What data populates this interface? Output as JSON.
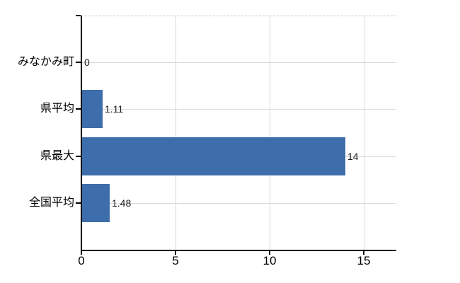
{
  "chart_data": {
    "type": "bar",
    "orientation": "horizontal",
    "title": "",
    "xlabel": "",
    "ylabel": "",
    "categories": [
      "みなかみ町",
      "県平均",
      "県最大",
      "全国平均"
    ],
    "values": [
      0,
      1.11,
      14,
      1.48
    ],
    "value_labels": [
      "0",
      "1.11",
      "14",
      "1.48"
    ],
    "xticks": [
      0,
      5,
      10,
      15
    ],
    "xtick_labels": [
      "0",
      "5",
      "10",
      "15"
    ],
    "xlim": [
      0,
      16.75
    ],
    "grid": true,
    "legend": false,
    "colors": {
      "bar": "#3e6dab",
      "gridline": "#d9d9d9",
      "top_border": "#c8c8c8",
      "axis": "#000000",
      "text": "#000000",
      "background": "#ffffff"
    }
  }
}
